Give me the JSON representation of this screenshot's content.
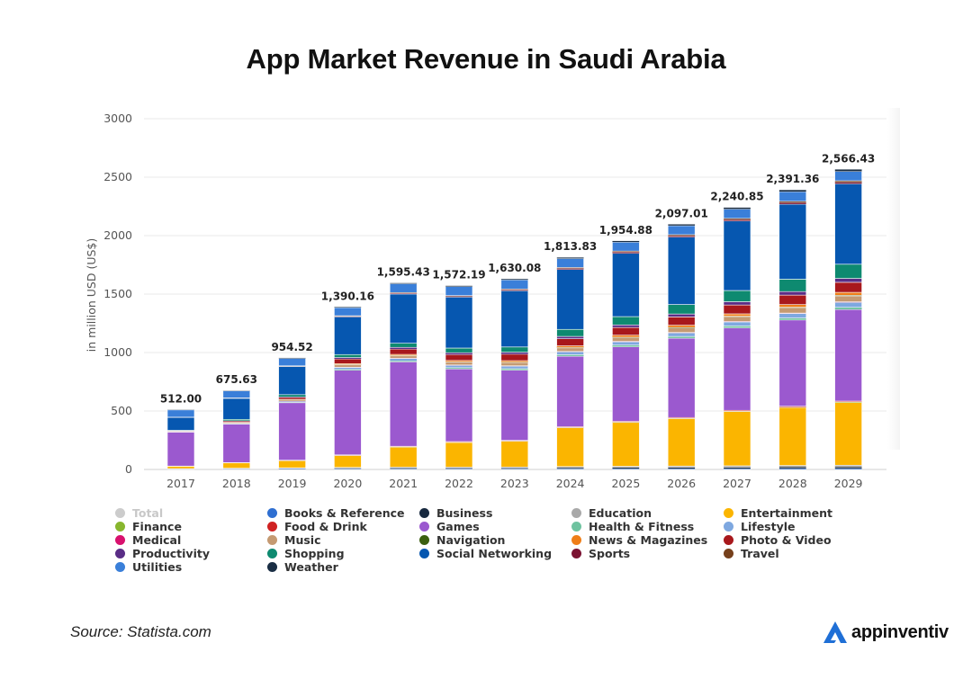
{
  "title": "App Market Revenue in Saudi Arabia",
  "source": "Source: Statista.com",
  "brand": "appinventiv",
  "chart_data": {
    "type": "stacked-bar",
    "ylabel": "in million USD (US$)",
    "ylim": [
      0,
      3000
    ],
    "yticks": [
      0,
      500,
      1000,
      1500,
      2000,
      2500,
      3000
    ],
    "categories": [
      "2017",
      "2018",
      "2019",
      "2020",
      "2021",
      "2022",
      "2023",
      "2024",
      "2025",
      "2026",
      "2027",
      "2028",
      "2029"
    ],
    "total_labels": [
      "512.00",
      "675.63",
      "954.52",
      "1,390.16",
      "1,595.43",
      "1,572.19",
      "1,630.08",
      "1,813.83",
      "1,954.88",
      "2,097.01",
      "2,240.85",
      "2,391.36",
      "2,566.43"
    ],
    "totals": [
      512.0,
      675.63,
      954.52,
      1390.16,
      1595.43,
      1572.19,
      1630.08,
      1813.83,
      1954.88,
      2097.01,
      2240.85,
      2391.36,
      2566.43
    ],
    "series": [
      {
        "name": "Books & Reference",
        "color": "#2f6fd1",
        "values": [
          3,
          4,
          5,
          6,
          6,
          6,
          6,
          7,
          7,
          7,
          7,
          8,
          8
        ]
      },
      {
        "name": "Business",
        "color": "#17293f",
        "values": [
          2,
          3,
          4,
          5,
          6,
          6,
          6,
          8,
          9,
          10,
          11,
          12,
          13
        ]
      },
      {
        "name": "Education",
        "color": "#a9a9a9",
        "values": [
          2,
          4,
          5,
          7,
          8,
          8,
          9,
          10,
          11,
          12,
          13,
          14,
          15
        ]
      },
      {
        "name": "Entertainment",
        "color": "#fbb500",
        "values": [
          20,
          45,
          60,
          100,
          170,
          210,
          220,
          330,
          370,
          400,
          460,
          490,
          530
        ]
      },
      {
        "name": "Finance",
        "color": "#88b62e",
        "values": [
          1,
          1,
          2,
          2,
          3,
          3,
          3,
          3,
          4,
          4,
          4,
          4,
          5
        ]
      },
      {
        "name": "Food & Drink",
        "color": "#d02222",
        "values": [
          1,
          2,
          3,
          4,
          5,
          5,
          5,
          6,
          6,
          6,
          7,
          7,
          7
        ]
      },
      {
        "name": "Games",
        "color": "#9b59cf",
        "values": [
          290,
          330,
          490,
          720,
          720,
          620,
          600,
          600,
          630,
          670,
          700,
          730,
          775
        ]
      },
      {
        "name": "Health & Fitness",
        "color": "#6fc3a0",
        "values": [
          1,
          3,
          4,
          8,
          10,
          11,
          12,
          13,
          14,
          15,
          16,
          17,
          18
        ]
      },
      {
        "name": "Lifestyle",
        "color": "#7ea8e0",
        "values": [
          2,
          4,
          8,
          15,
          18,
          20,
          22,
          25,
          28,
          30,
          34,
          38,
          42
        ]
      },
      {
        "name": "Medical",
        "color": "#d8116e",
        "values": [
          1,
          1,
          2,
          2,
          3,
          3,
          3,
          3,
          4,
          4,
          4,
          4,
          5
        ]
      },
      {
        "name": "Music",
        "color": "#c59a72",
        "values": [
          2,
          5,
          10,
          20,
          20,
          25,
          28,
          30,
          32,
          38,
          40,
          45,
          50
        ]
      },
      {
        "name": "Navigation",
        "color": "#3b5f10",
        "values": [
          1,
          2,
          2,
          3,
          3,
          3,
          4,
          4,
          4,
          5,
          5,
          5,
          5
        ]
      },
      {
        "name": "News & Magazines",
        "color": "#ef7e18",
        "values": [
          1,
          2,
          4,
          8,
          10,
          11,
          12,
          14,
          16,
          18,
          20,
          22,
          25
        ]
      },
      {
        "name": "Photo & Video",
        "color": "#a8181c",
        "values": [
          3,
          8,
          15,
          40,
          45,
          50,
          55,
          60,
          65,
          70,
          75,
          80,
          85
        ]
      },
      {
        "name": "Productivity",
        "color": "#5a2d86",
        "values": [
          2,
          4,
          6,
          12,
          15,
          16,
          17,
          20,
          22,
          25,
          28,
          30,
          33
        ]
      },
      {
        "name": "Shopping",
        "color": "#0e8a70",
        "values": [
          3,
          12,
          18,
          25,
          35,
          40,
          45,
          60,
          70,
          80,
          95,
          105,
          120
        ]
      },
      {
        "name": "Social Networking",
        "color": "#0657b0",
        "values": [
          110,
          180,
          240,
          320,
          420,
          435,
          480,
          510,
          535,
          570,
          590,
          635,
          680
        ]
      },
      {
        "name": "Sports",
        "color": "#7b1332",
        "values": [
          1,
          2,
          3,
          5,
          7,
          7,
          8,
          9,
          10,
          10,
          11,
          12,
          13
        ]
      },
      {
        "name": "Travel",
        "color": "#76401c",
        "values": [
          1,
          2,
          3,
          5,
          6,
          6,
          7,
          8,
          9,
          10,
          11,
          12,
          13
        ]
      },
      {
        "name": "Utilities",
        "color": "#3a7fd9",
        "values": [
          62,
          60,
          63,
          69,
          75,
          77,
          78,
          76,
          75,
          76,
          79,
          81,
          79
        ]
      },
      {
        "name": "Weather",
        "color": "#1a2e44",
        "values": [
          3,
          4,
          5,
          6,
          7,
          8,
          9,
          10,
          11,
          12,
          14,
          16,
          17
        ]
      }
    ],
    "legend": [
      {
        "name": "Total",
        "color": "#cccccc",
        "muted": true
      },
      {
        "name": "Books & Reference",
        "color": "#2f6fd1"
      },
      {
        "name": "Business",
        "color": "#17293f"
      },
      {
        "name": "Education",
        "color": "#a9a9a9"
      },
      {
        "name": "Entertainment",
        "color": "#fbb500"
      },
      {
        "name": "Finance",
        "color": "#88b62e"
      },
      {
        "name": "Food & Drink",
        "color": "#d02222"
      },
      {
        "name": "Games",
        "color": "#9b59cf"
      },
      {
        "name": "Health & Fitness",
        "color": "#6fc3a0"
      },
      {
        "name": "Lifestyle",
        "color": "#7ea8e0"
      },
      {
        "name": "Medical",
        "color": "#d8116e"
      },
      {
        "name": "Music",
        "color": "#c59a72"
      },
      {
        "name": "Navigation",
        "color": "#3b5f10"
      },
      {
        "name": "News & Magazines",
        "color": "#ef7e18"
      },
      {
        "name": "Photo & Video",
        "color": "#a8181c"
      },
      {
        "name": "Productivity",
        "color": "#5a2d86"
      },
      {
        "name": "Shopping",
        "color": "#0e8a70"
      },
      {
        "name": "Social Networking",
        "color": "#0657b0"
      },
      {
        "name": "Sports",
        "color": "#7b1332"
      },
      {
        "name": "Travel",
        "color": "#76401c"
      },
      {
        "name": "Utilities",
        "color": "#3a7fd9"
      },
      {
        "name": "Weather",
        "color": "#1a2e44"
      }
    ],
    "grid": true,
    "legend_position": "bottom"
  }
}
